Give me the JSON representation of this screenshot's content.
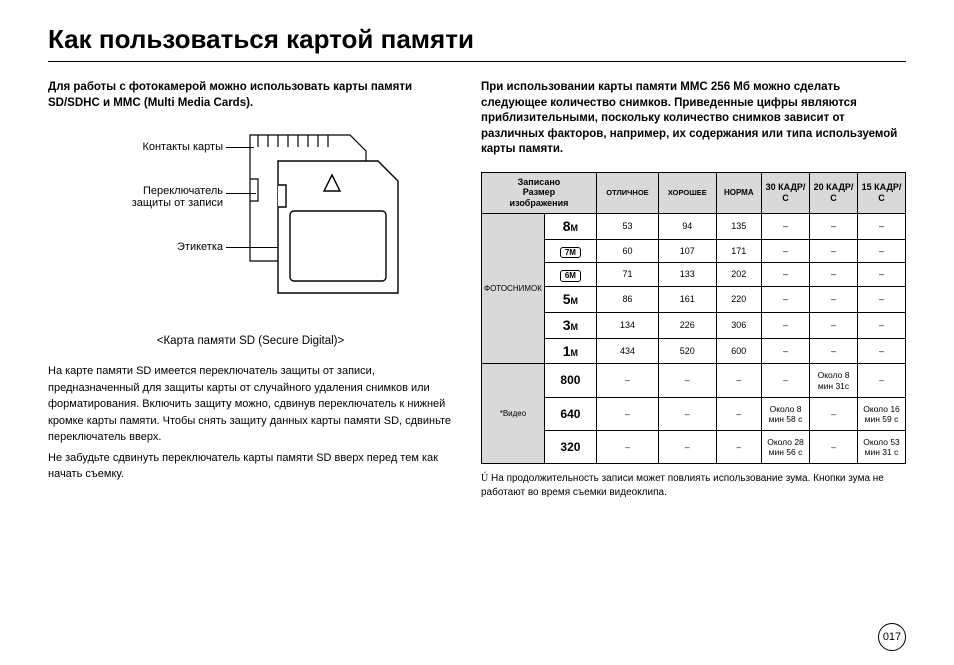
{
  "title": "Как пользоваться картой памяти",
  "leftIntro": "Для работы с фотокамерой можно использовать карты памяти SD/SDHC и MMC (Multi Media Cards).",
  "diagram": {
    "labelContacts": "Контакты карты",
    "labelSwitch": "Переключатель защиты от записи",
    "labelLabel": "Этикетка",
    "caption": "<Карта памяти SD (Secure Digital)>"
  },
  "para1": "На карте памяти SD имеется переключатель защиты от записи, предназначенный для защиты карты от случайного удаления снимков или форматирования. Включить защиту можно, сдвинув переключатель к нижней кромке карты памяти. Чтобы снять защиту данных карты памяти SD, сдвиньте переключатель вверх.",
  "para2": "Не забудьте сдвинуть переключатель карты памяти SD вверх перед тем как начать съемку.",
  "rightIntro": "При использовании карты памяти MMC 256 Мб можно сделать следующее количество снимков. Приведенные цифры являются приблизительными, поскольку количество снимков зависит от различных факторов, например, их содержания или типа используемой карты памяти.",
  "table": {
    "head": {
      "c0": "Записано\nРазмер\nизображения",
      "c1": "ОТЛИЧНОЕ",
      "c2": "ХОРОШЕЕ",
      "c3": "НОРМА",
      "c4": "30 КАДР/С",
      "c5": "20 КАДР/С",
      "c6": "15 КАДР/С"
    },
    "groupPhoto": "ФОТОСНИМОК",
    "groupVideo": "*Видео",
    "photoRows": [
      {
        "size": "8",
        "suffix": "M",
        "style": "bold",
        "v": [
          "53",
          "94",
          "135",
          "–",
          "–",
          "–"
        ]
      },
      {
        "size": "7M",
        "style": "box",
        "v": [
          "60",
          "107",
          "171",
          "–",
          "–",
          "–"
        ]
      },
      {
        "size": "6M",
        "style": "box",
        "v": [
          "71",
          "133",
          "202",
          "–",
          "–",
          "–"
        ]
      },
      {
        "size": "5",
        "suffix": "M",
        "style": "bold",
        "v": [
          "86",
          "161",
          "220",
          "–",
          "–",
          "–"
        ]
      },
      {
        "size": "3",
        "suffix": "M",
        "style": "bold",
        "v": [
          "134",
          "226",
          "306",
          "–",
          "–",
          "–"
        ]
      },
      {
        "size": "1",
        "suffix": "M",
        "style": "bold",
        "v": [
          "434",
          "520",
          "600",
          "–",
          "–",
          "–"
        ]
      }
    ],
    "videoRows": [
      {
        "size": "800",
        "v": [
          "–",
          "–",
          "–",
          "–",
          "Около 8 мин 31с",
          "–"
        ]
      },
      {
        "size": "640",
        "v": [
          "–",
          "–",
          "–",
          "Около 8 мин 58 с",
          "–",
          "Около 16 мин 59 с"
        ]
      },
      {
        "size": "320",
        "v": [
          "–",
          "–",
          "–",
          "Около 28 мин 56 с",
          "–",
          "Около 53 мин 31 с"
        ]
      }
    ]
  },
  "footnote": "На продолжительность записи может повлиять использование зума. Кнопки зума не работают во время съемки видеоклипа.",
  "footnoteStar": "Ú",
  "pageNum": "017"
}
